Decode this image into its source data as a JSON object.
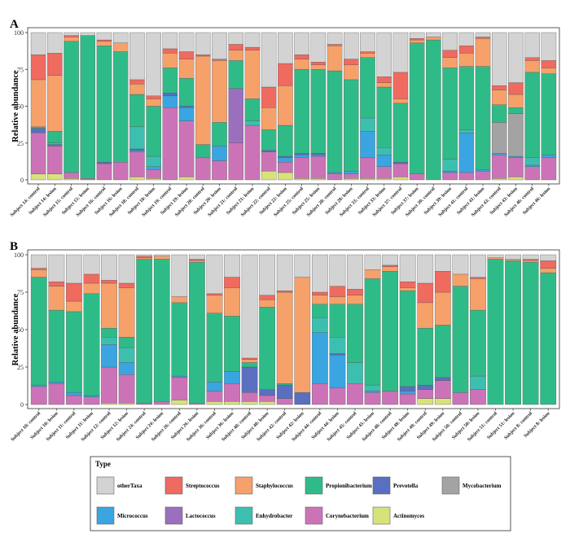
{
  "legend": {
    "title": "Type",
    "entries": [
      {
        "name": "otherTaxa",
        "color": "#d3d3d3"
      },
      {
        "name": "Streptococcus",
        "color": "#ef6a5f"
      },
      {
        "name": "Staphylococcus",
        "color": "#f6a06a"
      },
      {
        "name": "Propionibacterium",
        "color": "#2fbb88"
      },
      {
        "name": "Prevotella",
        "color": "#5b6fc0"
      },
      {
        "name": "Mycobacterium",
        "color": "#a3a3a3"
      },
      {
        "name": "Micrococcus",
        "color": "#3aa5e0"
      },
      {
        "name": "Lactococcus",
        "color": "#9b6fbe"
      },
      {
        "name": "Enhydrobacter",
        "color": "#3dbfb0"
      },
      {
        "name": "Corynebacterium",
        "color": "#cc73b8"
      },
      {
        "name": "Actinomyces",
        "color": "#d7e27a"
      }
    ]
  },
  "chart_data": [
    {
      "type": "bar",
      "panel": "A",
      "ylabel": "Relative abundance",
      "ylim": [
        0,
        100
      ],
      "yticks": [
        0,
        25,
        50,
        75,
        100
      ],
      "stack_order": [
        "Actinomyces",
        "Corynebacterium",
        "Lactococcus",
        "Micrococcus",
        "Prevotella",
        "Enhydrobacter",
        "Mycobacterium",
        "Propionibacterium",
        "Staphylococcus",
        "Streptococcus",
        "otherTaxa"
      ],
      "categories": [
        "Subject 14: control",
        "Subject 14: lesion",
        "Subject 15: control",
        "Subject 15: lesion",
        "Subject 16: control",
        "Subject 16: lesion",
        "Subject 18: control",
        "Subject 18: lesion",
        "Subject 19: control",
        "Subject 19: lesion",
        "Subject 20: control",
        "Subject 20: lesion",
        "Subject 21: control",
        "Subject 21: lesion",
        "Subject 22: control",
        "Subject 22: lesion",
        "Subject 25: control",
        "Subject 25: lesion",
        "Subject 28: control",
        "Subject 28: lesion",
        "Subject 33: control",
        "Subject 33: lesion",
        "Subject 37: control",
        "Subject 37: lesion",
        "Subject 39: control",
        "Subject 39: lesion",
        "Subject 41: control",
        "Subject 41: lesion",
        "Subject 43: control",
        "Subject 43: lesion",
        "Subject 46: control",
        "Subject 46: lesion"
      ],
      "stacks": [
        {
          "Actinomyces": 4,
          "Corynebacterium": 28,
          "Prevotella": 3,
          "Propionibacterium": 1,
          "Staphylococcus": 32,
          "Streptococcus": 17,
          "otherTaxa": 15
        },
        {
          "Actinomyces": 4,
          "Corynebacterium": 19,
          "Prevotella": 1,
          "Enhydrobacter": 1,
          "Propionibacterium": 8,
          "Staphylococcus": 38,
          "Streptococcus": 15,
          "otherTaxa": 14
        },
        {
          "Actinomyces": 1,
          "Corynebacterium": 4,
          "Propionibacterium": 89,
          "Staphylococcus": 3,
          "Streptococcus": 1,
          "otherTaxa": 2
        },
        {
          "Corynebacterium": 1,
          "Propionibacterium": 97,
          "otherTaxa": 2
        },
        {
          "Corynebacterium": 11,
          "Prevotella": 1,
          "Propionibacterium": 79,
          "Staphylococcus": 3,
          "Streptococcus": 1,
          "otherTaxa": 5
        },
        {
          "Corynebacterium": 12,
          "Propionibacterium": 75,
          "Staphylococcus": 6,
          "otherTaxa": 7
        },
        {
          "Actinomyces": 2,
          "Corynebacterium": 17,
          "Enhydrobacter": 15,
          "Micrococcus": 1,
          "Prevotella": 1,
          "Propionibacterium": 22,
          "Staphylococcus": 7,
          "Streptococcus": 3,
          "otherTaxa": 32
        },
        {
          "Actinomyces": 1,
          "Corynebacterium": 6,
          "Enhydrobacter": 7,
          "Micrococcus": 2,
          "Propionibacterium": 34,
          "Staphylococcus": 5,
          "Streptococcus": 2,
          "otherTaxa": 43
        },
        {
          "Corynebacterium": 49,
          "Micrococcus": 8,
          "Prevotella": 2,
          "Propionibacterium": 17,
          "Staphylococcus": 10,
          "Streptococcus": 3,
          "otherTaxa": 11
        },
        {
          "Actinomyces": 2,
          "Corynebacterium": 38,
          "Micrococcus": 9,
          "Prevotella": 1,
          "Propionibacterium": 19,
          "Staphylococcus": 13,
          "Streptococcus": 5,
          "otherTaxa": 13
        },
        {
          "Corynebacterium": 15,
          "Propionibacterium": 9,
          "Staphylococcus": 60,
          "Streptococcus": 1,
          "otherTaxa": 15
        },
        {
          "Corynebacterium": 13,
          "Micrococcus": 10,
          "Propionibacterium": 16,
          "Staphylococcus": 42,
          "Streptococcus": 1,
          "otherTaxa": 18
        },
        {
          "Corynebacterium": 25,
          "Lactococcus": 37,
          "Propionibacterium": 19,
          "Staphylococcus": 7,
          "Streptococcus": 4,
          "otherTaxa": 8
        },
        {
          "Corynebacterium": 37,
          "Enhydrobacter": 3,
          "Propionibacterium": 15,
          "Staphylococcus": 33,
          "Streptococcus": 2,
          "otherTaxa": 10
        },
        {
          "Actinomyces": 6,
          "Corynebacterium": 13,
          "Prevotella": 1,
          "Propionibacterium": 14,
          "Staphylococcus": 15,
          "Streptococcus": 14,
          "otherTaxa": 37
        },
        {
          "Actinomyces": 5,
          "Corynebacterium": 7,
          "Micrococcus": 3,
          "Prevotella": 1,
          "Propionibacterium": 21,
          "Staphylococcus": 27,
          "Streptococcus": 15,
          "otherTaxa": 21
        },
        {
          "Actinomyces": 1,
          "Corynebacterium": 14,
          "Micrococcus": 2,
          "Prevotella": 1,
          "Propionibacterium": 57,
          "Staphylococcus": 7,
          "Streptococcus": 3,
          "otherTaxa": 15
        },
        {
          "Actinomyces": 1,
          "Corynebacterium": 15,
          "Micrococcus": 1,
          "Prevotella": 1,
          "Propionibacterium": 57,
          "Staphylococcus": 3,
          "Streptococcus": 2,
          "otherTaxa": 20
        },
        {
          "Corynebacterium": 4,
          "Micrococcus": 1,
          "Propionibacterium": 69,
          "Staphylococcus": 17,
          "Streptococcus": 1,
          "otherTaxa": 8
        },
        {
          "Actinomyces": 1,
          "Corynebacterium": 3,
          "Micrococcus": 2,
          "Propionibacterium": 62,
          "Staphylococcus": 10,
          "Streptococcus": 4,
          "otherTaxa": 18
        },
        {
          "Actinomyces": 1,
          "Corynebacterium": 14,
          "Enhydrobacter": 9,
          "Micrococcus": 18,
          "Propionibacterium": 41,
          "Staphylococcus": 3,
          "Streptococcus": 1,
          "otherTaxa": 13
        },
        {
          "Actinomyces": 1,
          "Corynebacterium": 8,
          "Enhydrobacter": 5,
          "Micrococcus": 8,
          "Propionibacterium": 41,
          "Staphylococcus": 3,
          "Streptococcus": 4,
          "otherTaxa": 30
        },
        {
          "Actinomyces": 2,
          "Corynebacterium": 9,
          "Prevotella": 1,
          "Propionibacterium": 40,
          "Staphylococcus": 3,
          "Streptococcus": 18,
          "otherTaxa": 27
        },
        {
          "Corynebacterium": 4,
          "Propionibacterium": 89,
          "Staphylococcus": 2,
          "Streptococcus": 1,
          "otherTaxa": 4
        },
        {
          "Propionibacterium": 95,
          "Staphylococcus": 2,
          "otherTaxa": 3
        },
        {
          "Corynebacterium": 5,
          "Enhydrobacter": 8,
          "Micrococcus": 1,
          "Propionibacterium": 62,
          "Staphylococcus": 7,
          "Streptococcus": 5,
          "otherTaxa": 12
        },
        {
          "Corynebacterium": 5,
          "Enhydrobacter": 2,
          "Micrococcus": 27,
          "Propionibacterium": 43,
          "Staphylococcus": 9,
          "Streptococcus": 5,
          "otherTaxa": 9
        },
        {
          "Corynebacterium": 6,
          "Micrococcus": 1,
          "Propionibacterium": 70,
          "Staphylococcus": 19,
          "Streptococcus": 1,
          "otherTaxa": 3
        },
        {
          "Actinomyces": 1,
          "Corynebacterium": 16,
          "Micrococcus": 1,
          "Mycobacterium": 21,
          "Propionibacterium": 12,
          "Staphylococcus": 10,
          "Streptococcus": 3,
          "otherTaxa": 36
        },
        {
          "Actinomyces": 2,
          "Corynebacterium": 13,
          "Micrococcus": 1,
          "Mycobacterium": 29,
          "Propionibacterium": 4,
          "Staphylococcus": 9,
          "Streptococcus": 8,
          "otherTaxa": 34
        },
        {
          "Corynebacterium": 9,
          "Enhydrobacter": 5,
          "Micrococcus": 1,
          "Propionibacterium": 58,
          "Staphylococcus": 8,
          "Streptococcus": 2,
          "otherTaxa": 17
        },
        {
          "Corynebacterium": 15,
          "Micrococcus": 2,
          "Propionibacterium": 55,
          "Staphylococcus": 4,
          "Streptococcus": 5,
          "otherTaxa": 19
        }
      ]
    },
    {
      "type": "bar",
      "panel": "B",
      "ylabel": "Relative abundance",
      "ylim": [
        0,
        100
      ],
      "yticks": [
        0,
        25,
        50,
        75,
        100
      ],
      "stack_order": [
        "Actinomyces",
        "Corynebacterium",
        "Lactococcus",
        "Micrococcus",
        "Prevotella",
        "Enhydrobacter",
        "Mycobacterium",
        "Propionibacterium",
        "Staphylococcus",
        "Streptococcus",
        "otherTaxa"
      ],
      "categories": [
        "Subject 10: control",
        "Subject 10: lesion",
        "Subject 11: control",
        "Subject 11: lesion",
        "Subject 12: control",
        "Subject 12: lesion",
        "Subject 24: control",
        "Subject 24: lesion",
        "Subject 26: control",
        "Subject 26: lesion",
        "Subject 36: control",
        "Subject 36: lesion",
        "Subject 40: control",
        "Subject 40: lesion",
        "Subject 42: control",
        "Subject 42: lesion",
        "Subject 44: control",
        "Subject 44: lesion",
        "Subject 45: control",
        "Subject 45: lesion",
        "Subject 48: control",
        "Subject 48: lesion",
        "Subject 49: control",
        "Subject 49: lesion",
        "Subject 50: control",
        "Subject 50: lesion",
        "Subject 51: control",
        "Subject 51: lesion",
        "Subject 8: control",
        "Subject 8: lesion"
      ],
      "stacks": [
        {
          "Corynebacterium": 12,
          "Micrococcus": 1,
          "Propionibacterium": 72,
          "Staphylococcus": 5,
          "Streptococcus": 1,
          "otherTaxa": 9
        },
        {
          "Corynebacterium": 14,
          "Micrococcus": 1,
          "Propionibacterium": 48,
          "Staphylococcus": 16,
          "Streptococcus": 3,
          "otherTaxa": 18
        },
        {
          "Corynebacterium": 6,
          "Micrococcus": 2,
          "Propionibacterium": 54,
          "Staphylococcus": 7,
          "Streptococcus": 12,
          "otherTaxa": 19
        },
        {
          "Corynebacterium": 5,
          "Micrococcus": 1,
          "Propionibacterium": 68,
          "Staphylococcus": 7,
          "Streptococcus": 6,
          "otherTaxa": 13
        },
        {
          "Actinomyces": 1,
          "Corynebacterium": 24,
          "Enhydrobacter": 5,
          "Micrococcus": 15,
          "Propionibacterium": 6,
          "Staphylococcus": 30,
          "Streptococcus": 2,
          "otherTaxa": 17
        },
        {
          "Actinomyces": 1,
          "Corynebacterium": 19,
          "Enhydrobacter": 10,
          "Micrococcus": 8,
          "Propionibacterium": 7,
          "Staphylococcus": 33,
          "Streptococcus": 3,
          "otherTaxa": 19
        },
        {
          "Corynebacterium": 1,
          "Propionibacterium": 96,
          "Staphylococcus": 1,
          "Streptococcus": 1,
          "otherTaxa": 1
        },
        {
          "Corynebacterium": 2,
          "Propionibacterium": 95,
          "Staphylococcus": 2,
          "otherTaxa": 1
        },
        {
          "Actinomyces": 3,
          "Corynebacterium": 15,
          "Micrococcus": 1,
          "Propionibacterium": 49,
          "Staphylococcus": 4,
          "otherTaxa": 28
        },
        {
          "Corynebacterium": 1,
          "Propionibacterium": 94,
          "Staphylococcus": 1,
          "Streptococcus": 1,
          "otherTaxa": 3
        },
        {
          "Actinomyces": 2,
          "Corynebacterium": 7,
          "Micrococcus": 6,
          "Propionibacterium": 46,
          "Staphylococcus": 12,
          "Streptococcus": 1,
          "otherTaxa": 26
        },
        {
          "Actinomyces": 2,
          "Corynebacterium": 12,
          "Micrococcus": 8,
          "Propionibacterium": 37,
          "Staphylococcus": 19,
          "Streptococcus": 7,
          "otherTaxa": 15
        },
        {
          "Actinomyces": 2,
          "Corynebacterium": 6,
          "Prevotella": 17,
          "Propionibacterium": 3,
          "Staphylococcus": 2,
          "Streptococcus": 1,
          "otherTaxa": 69
        },
        {
          "Actinomyces": 2,
          "Corynebacterium": 4,
          "Prevotella": 4,
          "Propionibacterium": 55,
          "Staphylococcus": 5,
          "Streptococcus": 3,
          "otherTaxa": 27
        },
        {
          "Corynebacterium": 4,
          "Prevotella": 9,
          "Propionibacterium": 1,
          "Staphylococcus": 61,
          "Streptococcus": 1,
          "otherTaxa": 24
        },
        {
          "Prevotella": 8,
          "Staphylococcus": 77,
          "otherTaxa": 15
        },
        {
          "Corynebacterium": 14,
          "Enhydrobacter": 10,
          "Micrococcus": 34,
          "Propionibacterium": 9,
          "Staphylococcus": 6,
          "Streptococcus": 2,
          "otherTaxa": 25
        },
        {
          "Corynebacterium": 11,
          "Enhydrobacter": 11,
          "Micrococcus": 22,
          "Prevotella": 1,
          "Propionibacterium": 22,
          "Staphylococcus": 5,
          "Streptococcus": 7,
          "otherTaxa": 21
        },
        {
          "Corynebacterium": 14,
          "Enhydrobacter": 14,
          "Propionibacterium": 39,
          "Staphylococcus": 6,
          "Streptococcus": 4,
          "otherTaxa": 23
        },
        {
          "Corynebacterium": 8,
          "Enhydrobacter": 4,
          "Micrococcus": 1,
          "Propionibacterium": 71,
          "Staphylococcus": 6,
          "otherTaxa": 10
        },
        {
          "Corynebacterium": 9,
          "Propionibacterium": 80,
          "Staphylococcus": 3,
          "Streptococcus": 1,
          "otherTaxa": 7
        },
        {
          "Corynebacterium": 7,
          "Micrococcus": 2,
          "Prevotella": 3,
          "Propionibacterium": 64,
          "Staphylococcus": 2,
          "Streptococcus": 4,
          "otherTaxa": 18
        },
        {
          "Actinomyces": 4,
          "Corynebacterium": 6,
          "Prevotella": 3,
          "Propionibacterium": 38,
          "Staphylococcus": 17,
          "Streptococcus": 13,
          "otherTaxa": 19
        },
        {
          "Actinomyces": 4,
          "Corynebacterium": 12,
          "Prevotella": 2,
          "Propionibacterium": 35,
          "Staphylococcus": 22,
          "Streptococcus": 14,
          "otherTaxa": 11
        },
        {
          "Corynebacterium": 8,
          "Propionibacterium": 71,
          "Staphylococcus": 8,
          "otherTaxa": 13
        },
        {
          "Corynebacterium": 10,
          "Enhydrobacter": 9,
          "Propionibacterium": 44,
          "Staphylococcus": 21,
          "Streptococcus": 1,
          "otherTaxa": 15
        },
        {
          "Propionibacterium": 97,
          "Staphylococcus": 1,
          "otherTaxa": 2
        },
        {
          "Propionibacterium": 96,
          "Staphylococcus": 1,
          "otherTaxa": 3
        },
        {
          "Propionibacterium": 95,
          "Staphylococcus": 1,
          "Streptococcus": 1,
          "otherTaxa": 3
        },
        {
          "Propionibacterium": 88,
          "Staphylococcus": 3,
          "Streptococcus": 5,
          "otherTaxa": 4
        }
      ]
    }
  ]
}
